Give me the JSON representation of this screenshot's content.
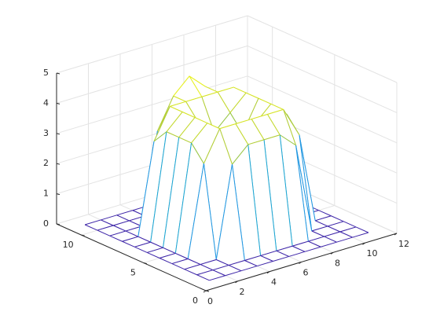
{
  "chart_data": {
    "type": "mesh",
    "x": [
      1,
      2,
      3,
      4,
      5,
      6,
      7,
      8,
      9,
      10,
      11
    ],
    "y": [
      1,
      2,
      3,
      4,
      5,
      6,
      7,
      8,
      9,
      10,
      11
    ],
    "z": [
      [
        0,
        0,
        0,
        0,
        0,
        0,
        0,
        0,
        0,
        0,
        0
      ],
      [
        0,
        0,
        0,
        0,
        0,
        0,
        0,
        0,
        0,
        0,
        0
      ],
      [
        0,
        0,
        0,
        3,
        3.5,
        3.5,
        3.5,
        3,
        0,
        0,
        0
      ],
      [
        0,
        0,
        3,
        4,
        4,
        4,
        4,
        4,
        3,
        0,
        0
      ],
      [
        0,
        0,
        3.5,
        4,
        3.5,
        3,
        3.5,
        4,
        3.5,
        0,
        0
      ],
      [
        0,
        0,
        3.5,
        4,
        3,
        0,
        3,
        4,
        3.5,
        0,
        0
      ],
      [
        0,
        0,
        3.5,
        4,
        3.5,
        3,
        3.5,
        4,
        3.5,
        0,
        0
      ],
      [
        0,
        0,
        3,
        4,
        4,
        4,
        4,
        4,
        3,
        0,
        0
      ],
      [
        0,
        0,
        0,
        3,
        4,
        4.5,
        4,
        3,
        0,
        0,
        0
      ],
      [
        0,
        0,
        0,
        0,
        0,
        0,
        0,
        0,
        0,
        0,
        0
      ],
      [
        0,
        0,
        0,
        0,
        0,
        0,
        0,
        0,
        0,
        0,
        0
      ]
    ],
    "xlim": [
      0,
      12
    ],
    "ylim": [
      0,
      12
    ],
    "zlim": [
      0,
      5
    ],
    "xticks": [
      0,
      2,
      4,
      6,
      8,
      10,
      12
    ],
    "yticks": [
      0,
      5,
      10
    ],
    "zticks": [
      0,
      1,
      2,
      3,
      4,
      5
    ],
    "grid": true
  }
}
